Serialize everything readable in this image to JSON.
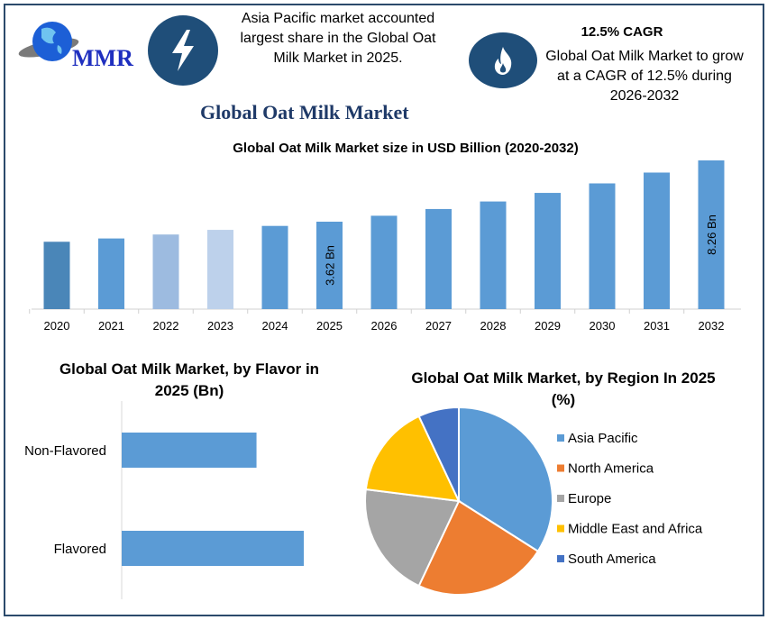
{
  "header": {
    "logo_text": "MMR",
    "info_left": "Asia Pacific market accounted largest share in the Global Oat Milk Market in 2025.",
    "info_right_title": "12.5% CAGR",
    "info_right_text": "Global Oat Milk Market to grow at a CAGR of 12.5% during 2026-2032",
    "icons": [
      "lightning-icon",
      "flame-icon"
    ],
    "icon_circle_color": "#1f4e79"
  },
  "main_title": "Global Oat Milk Market",
  "chart_data": [
    {
      "type": "bar",
      "title": "Global Oat Milk Market size in USD Billion (2020-2032)",
      "categories": [
        "2020",
        "2021",
        "2022",
        "2023",
        "2024",
        "2025",
        "2026",
        "2027",
        "2028",
        "2029",
        "2030",
        "2031",
        "2032"
      ],
      "values": [
        2.1,
        2.35,
        2.65,
        3.0,
        3.3,
        3.62,
        4.07,
        4.58,
        5.15,
        5.8,
        6.52,
        7.34,
        8.26
      ],
      "data_labels": {
        "2025": "3.62 Bn",
        "2032": "8.26 Bn"
      },
      "colors": [
        "#4a86b8",
        "#5b9bd5",
        "#9dbbe0",
        "#bdd1eb",
        "#5b9bd5",
        "#5b9bd5",
        "#5b9bd5",
        "#5b9bd5",
        "#5b9bd5",
        "#5b9bd5",
        "#5b9bd5",
        "#5b9bd5",
        "#5b9bd5"
      ],
      "grid": false
    },
    {
      "type": "bar",
      "orientation": "horizontal",
      "title": "Global Oat Milk Market, by Flavor in 2025 (Bn)",
      "categories": [
        "Non-Flavored",
        "Flavored"
      ],
      "values": [
        1.54,
        2.08
      ],
      "color": "#5b9bd5"
    },
    {
      "type": "pie",
      "title": "Global Oat Milk Market, by Region In 2025 (%)",
      "categories": [
        "Asia Pacific",
        "North America",
        "Europe",
        "Middle East and Africa",
        "South America"
      ],
      "values": [
        34,
        23,
        20,
        16,
        7
      ],
      "colors": [
        "#5b9bd5",
        "#ed7d31",
        "#a5a5a5",
        "#ffc000",
        "#4472c4"
      ],
      "legend": "right"
    }
  ]
}
